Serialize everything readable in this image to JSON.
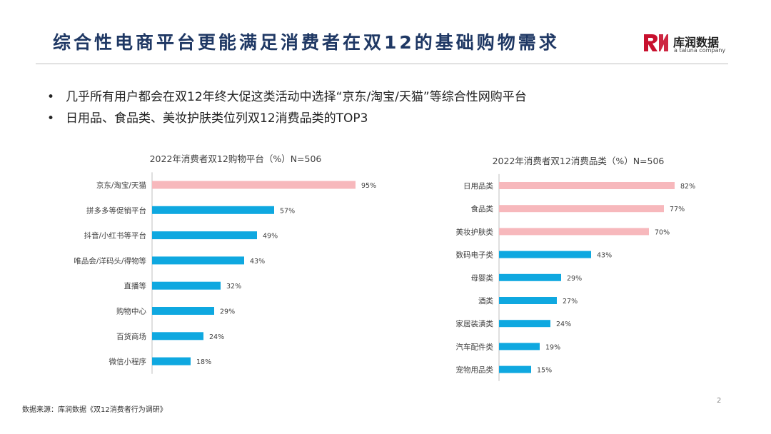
{
  "title": "综合性电商平台更能满足消费者在双12的基础购物需求",
  "logo": {
    "name": "库润数据",
    "tagline": "a taluna company",
    "mark_color": "#c8102e"
  },
  "bullets": [
    "几乎所有用户都会在双12年终大促这类活动中选择“京东/淘宝/天猫”等综合性网购平台",
    "日用品、食品类、美妆护肤类位列双12消费品类的TOP3"
  ],
  "bullet_glyph": "•",
  "source": "数据来源：库润数据《双12消费者行为调研》",
  "page_number": "2",
  "colors": {
    "title": "#1f3864",
    "highlight_bar": "#f7b8bc",
    "normal_bar": "#0fa8e0"
  },
  "chart_data": [
    {
      "type": "bar",
      "orientation": "horizontal",
      "title": "2022年消费者双12购物平台（%）N=506",
      "categories": [
        "京东/淘宝/天猫",
        "拼多多等促销平台",
        "抖音/小红书等平台",
        "唯品会/洋码头/得物等",
        "直播等",
        "购物中心",
        "百货商场",
        "微信小程序"
      ],
      "values": [
        95,
        57,
        49,
        43,
        32,
        29,
        24,
        18
      ],
      "value_labels": [
        "95%",
        "57%",
        "49%",
        "43%",
        "32%",
        "29%",
        "24%",
        "18%"
      ],
      "highlight_count": 1,
      "xlim": [
        0,
        100
      ],
      "grid": false
    },
    {
      "type": "bar",
      "orientation": "horizontal",
      "title": "2022年消费者双12消费品类（%）N=506",
      "categories": [
        "日用品类",
        "食品类",
        "美妆护肤类",
        "数码电子类",
        "母婴类",
        "酒类",
        "家居装潢类",
        "汽车配件类",
        "宠物用品类"
      ],
      "values": [
        82,
        77,
        70,
        43,
        29,
        27,
        24,
        19,
        15
      ],
      "value_labels": [
        "82%",
        "77%",
        "70%",
        "43%",
        "29%",
        "27%",
        "24%",
        "19%",
        "15%"
      ],
      "highlight_count": 3,
      "xlim": [
        0,
        100
      ],
      "grid": false
    }
  ]
}
